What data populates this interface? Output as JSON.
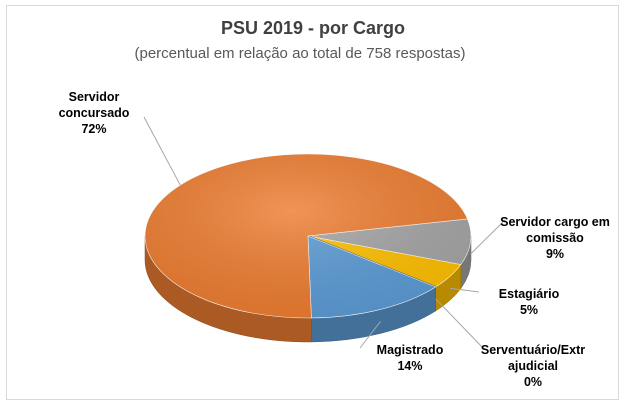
{
  "chart_data": {
    "type": "pie",
    "title": "PSU 2019 - por Cargo",
    "subtitle": "(percentual em relação ao total de 758 respostas)",
    "slices": [
      {
        "label_lines": [
          "Servidor cargo em",
          "comissão"
        ],
        "percent_label": "9%",
        "value": 9,
        "color": "#a5a5a5"
      },
      {
        "label_lines": [
          "Estagiário"
        ],
        "percent_label": "5%",
        "value": 5,
        "color": "#ffc000"
      },
      {
        "label_lines": [
          "Serventuário/Extr",
          "ajudicial"
        ],
        "percent_label": "0%",
        "value": 0,
        "color": "#264478"
      },
      {
        "label_lines": [
          "Magistrado"
        ],
        "percent_label": "14%",
        "value": 14,
        "color": "#5b9bd5"
      },
      {
        "label_lines": [
          "Servidor",
          "concursado"
        ],
        "percent_label": "72%",
        "value": 72,
        "color": "#ed7d31"
      }
    ],
    "style": "3d-pie",
    "legend": "none"
  }
}
